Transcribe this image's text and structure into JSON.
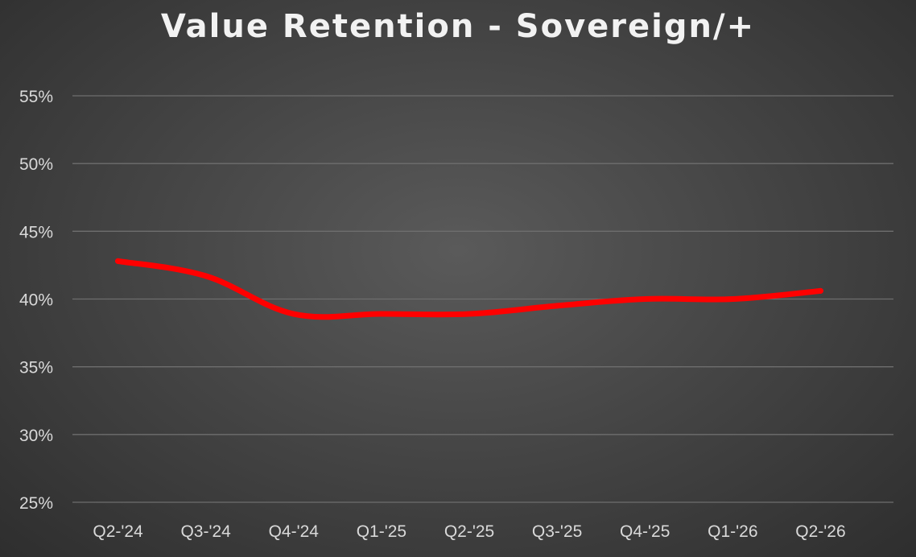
{
  "chart_data": {
    "type": "line",
    "title": "Value Retention - Sovereign/+",
    "xlabel": "",
    "ylabel": "",
    "categories": [
      "Q2-'24",
      "Q3-'24",
      "Q4-'24",
      "Q1-'25",
      "Q2-'25",
      "Q3-'25",
      "Q4-'25",
      "Q1-'26",
      "Q2-'26"
    ],
    "series": [
      {
        "values": [
          42.8,
          41.7,
          38.9,
          38.9,
          38.9,
          39.5,
          40.0,
          40.0,
          40.6
        ],
        "color": "#ff0000"
      }
    ],
    "ylim": [
      25,
      55
    ],
    "yticks": [
      25,
      30,
      35,
      40,
      45,
      50,
      55
    ],
    "ytick_labels": [
      "25%",
      "30%",
      "35%",
      "40%",
      "45%",
      "50%",
      "55%"
    ],
    "grid": true,
    "legend": "none",
    "background": "#464646",
    "gridline_color": "#6e6e6e",
    "text_color": "#d9d9d9"
  }
}
